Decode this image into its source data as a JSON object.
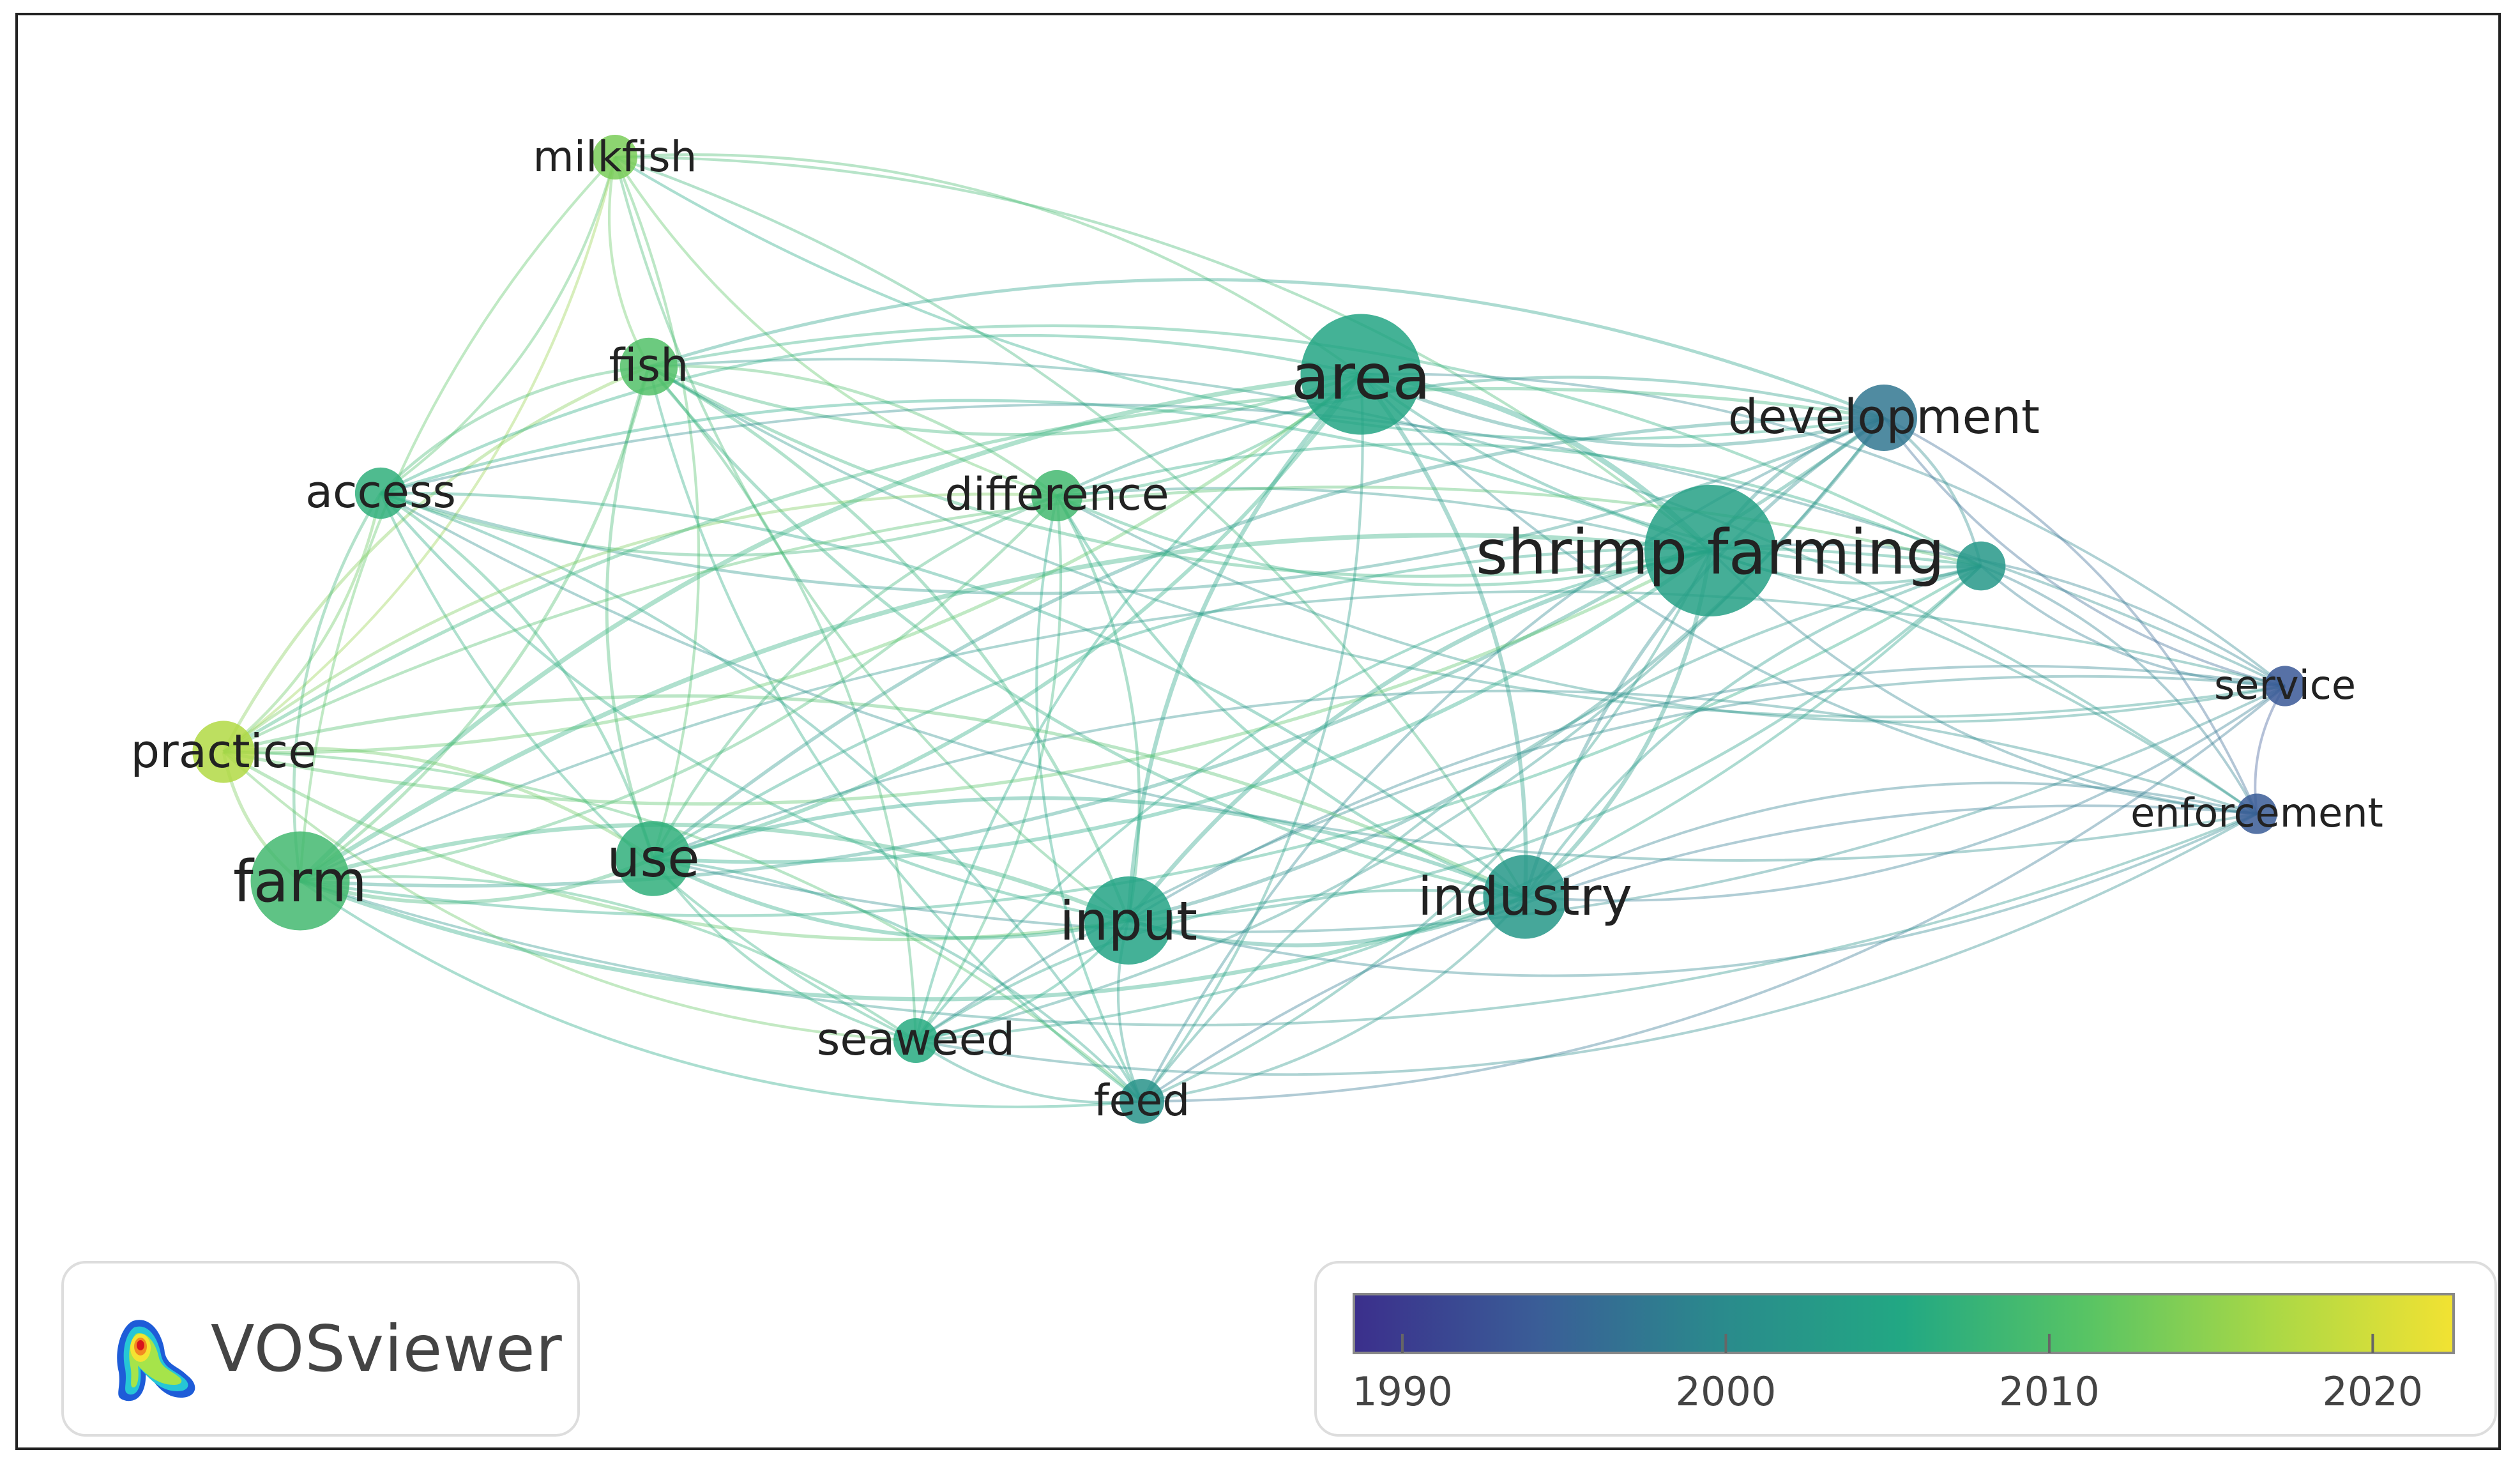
{
  "colors": {
    "viridis_stops": [
      "#3b2f8c",
      "#3a5d97",
      "#2a8a8c",
      "#22a883",
      "#58c464",
      "#a9d846",
      "#f2e232"
    ],
    "edge_green": "#8fd48a",
    "edge_teal": "#6cc0b0",
    "edge_blue": "#8eb4d8"
  },
  "logo": {
    "text": "VOSviewer",
    "icon": "vosviewer-heatmap-icon"
  },
  "legend": {
    "ticks": [
      {
        "label": "1990",
        "value": 1990
      },
      {
        "label": "2000",
        "value": 2000
      },
      {
        "label": "2010",
        "value": 2010
      },
      {
        "label": "2020",
        "value": 2020
      }
    ],
    "range": [
      1988.5,
      2022.5
    ]
  },
  "nodes": [
    {
      "id": "milkfish",
      "label": "milkfish",
      "year": 2013.5,
      "weight": 1.0
    },
    {
      "id": "fish",
      "label": "fish",
      "year": 2010.5,
      "weight": 1.6
    },
    {
      "id": "access",
      "label": "access",
      "year": 2007.0,
      "weight": 1.3
    },
    {
      "id": "difference",
      "label": "difference",
      "year": 2009.0,
      "weight": 1.3
    },
    {
      "id": "area",
      "label": "area",
      "year": 2005.0,
      "weight": 4.5
    },
    {
      "id": "development",
      "label": "development",
      "year": 1997.5,
      "weight": 2.0
    },
    {
      "id": "shrimp_farming",
      "label": "shrimp farming",
      "year": 2004.0,
      "weight": 5.0
    },
    {
      "id": "unlabeled",
      "label": "",
      "year": 2002.5,
      "weight": 1.2
    },
    {
      "id": "service",
      "label": "service",
      "year": 1993.5,
      "weight": 0.8
    },
    {
      "id": "enforcement",
      "label": "enforcement",
      "year": 1994.0,
      "weight": 0.8
    },
    {
      "id": "practice",
      "label": "practice",
      "year": 2017.5,
      "weight": 1.8
    },
    {
      "id": "farm",
      "label": "farm",
      "year": 2009.0,
      "weight": 3.5
    },
    {
      "id": "use",
      "label": "use",
      "year": 2007.0,
      "weight": 2.4
    },
    {
      "id": "input",
      "label": "input",
      "year": 2004.5,
      "weight": 3.0
    },
    {
      "id": "industry",
      "label": "industry",
      "year": 2002.5,
      "weight": 2.8
    },
    {
      "id": "seaweed",
      "label": "seaweed",
      "year": 2006.0,
      "weight": 1.0
    },
    {
      "id": "feed",
      "label": "feed",
      "year": 2001.5,
      "weight": 1.0
    }
  ]
}
